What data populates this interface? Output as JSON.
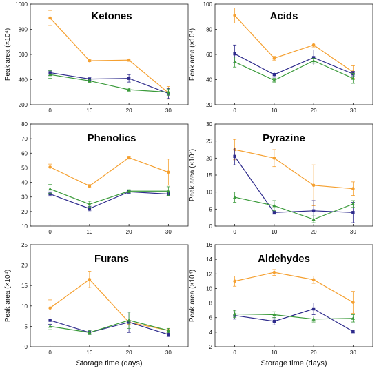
{
  "figure": {
    "xlabel": "Storage time (days)",
    "ylabel": "Peak area (×10⁴)"
  },
  "colors": {
    "orange": "#f5a030",
    "blue": "#2e2b8c",
    "green": "#3a9a3a"
  },
  "chart_data": [
    {
      "type": "line",
      "title": "Ketones",
      "x": [
        0,
        10,
        20,
        30
      ],
      "xlim": [
        -5,
        35
      ],
      "xticks": [
        0,
        10,
        20,
        30
      ],
      "ylim": [
        200,
        1000
      ],
      "yticks": [
        200,
        400,
        600,
        800,
        1000
      ],
      "ylabel": "Peak area (×10⁴)",
      "xlabel": "",
      "series": [
        {
          "color": "orange",
          "marker": "circle",
          "values": [
            890,
            550,
            555,
            295
          ],
          "errors": [
            60,
            8,
            10,
            50
          ]
        },
        {
          "color": "blue",
          "marker": "square",
          "values": [
            455,
            405,
            410,
            290
          ],
          "errors": [
            20,
            10,
            30,
            40
          ]
        },
        {
          "color": "green",
          "marker": "triangle",
          "values": [
            440,
            390,
            320,
            300
          ],
          "errors": [
            30,
            12,
            12,
            25
          ]
        }
      ]
    },
    {
      "type": "line",
      "title": "Acids",
      "x": [
        0,
        10,
        20,
        30
      ],
      "xlim": [
        -5,
        35
      ],
      "xticks": [
        0,
        10,
        20,
        30
      ],
      "ylim": [
        20,
        100
      ],
      "yticks": [
        20,
        40,
        60,
        80,
        100
      ],
      "ylabel": "Peak area (×10⁴)",
      "xlabel": "",
      "series": [
        {
          "color": "orange",
          "marker": "circle",
          "values": [
            91,
            57,
            67.5,
            46
          ],
          "errors": [
            6,
            1.5,
            1.5,
            5
          ]
        },
        {
          "color": "blue",
          "marker": "square",
          "values": [
            60.5,
            44,
            57.5,
            44.5
          ],
          "errors": [
            7,
            2,
            6,
            2
          ]
        },
        {
          "color": "green",
          "marker": "triangle",
          "values": [
            54,
            39.5,
            55,
            41
          ],
          "errors": [
            4,
            1.5,
            2,
            4
          ]
        }
      ]
    },
    {
      "type": "line",
      "title": "Phenolics",
      "x": [
        0,
        10,
        20,
        30
      ],
      "xlim": [
        -5,
        35
      ],
      "xticks": [
        0,
        10,
        20,
        30
      ],
      "ylim": [
        10,
        80
      ],
      "yticks": [
        10,
        20,
        30,
        40,
        50,
        60,
        70,
        80
      ],
      "ylabel": "",
      "xlabel": "",
      "series": [
        {
          "color": "orange",
          "marker": "circle",
          "values": [
            50.5,
            37.5,
            57,
            47
          ],
          "errors": [
            2,
            1,
            1,
            9
          ]
        },
        {
          "color": "blue",
          "marker": "square",
          "values": [
            32,
            22,
            33.5,
            32
          ],
          "errors": [
            1.5,
            1.5,
            1,
            1
          ]
        },
        {
          "color": "green",
          "marker": "triangle",
          "values": [
            35.5,
            25,
            34,
            34
          ],
          "errors": [
            3,
            2,
            1,
            3
          ]
        }
      ]
    },
    {
      "type": "line",
      "title": "Pyrazine",
      "x": [
        0,
        10,
        20,
        30
      ],
      "xlim": [
        -5,
        35
      ],
      "xticks": [
        0,
        10,
        20,
        30
      ],
      "ylim": [
        0,
        30
      ],
      "yticks": [
        0,
        5,
        10,
        15,
        20,
        25,
        30
      ],
      "ylabel": "Peak area (×10⁴)",
      "xlabel": "",
      "series": [
        {
          "color": "orange",
          "marker": "circle",
          "values": [
            22.5,
            20,
            12,
            11
          ],
          "errors": [
            3,
            2.5,
            6,
            2
          ]
        },
        {
          "color": "blue",
          "marker": "square",
          "values": [
            20.5,
            4,
            4.5,
            4
          ],
          "errors": [
            2.5,
            0.5,
            3,
            3
          ]
        },
        {
          "color": "green",
          "marker": "triangle",
          "values": [
            8.5,
            6,
            2,
            6.5
          ],
          "errors": [
            1.5,
            1.5,
            1,
            1
          ]
        }
      ]
    },
    {
      "type": "line",
      "title": "Furans",
      "x": [
        0,
        10,
        20,
        30
      ],
      "xlim": [
        -5,
        35
      ],
      "xticks": [
        0,
        10,
        20,
        30
      ],
      "ylim": [
        0,
        25
      ],
      "yticks": [
        0,
        5,
        10,
        15,
        20,
        25
      ],
      "ylabel": "Peak area (×10⁴)",
      "xlabel": "Storage time (days)",
      "series": [
        {
          "color": "orange",
          "marker": "circle",
          "values": [
            9.5,
            16.5,
            6,
            4
          ],
          "errors": [
            2,
            2,
            0.5,
            0.5
          ]
        },
        {
          "color": "blue",
          "marker": "square",
          "values": [
            6.5,
            3.5,
            6,
            3
          ],
          "errors": [
            1,
            0.5,
            2.5,
            0.5
          ]
        },
        {
          "color": "green",
          "marker": "triangle",
          "values": [
            5,
            3.5,
            6.5,
            4
          ],
          "errors": [
            0.8,
            0.5,
            2,
            0.5
          ]
        }
      ]
    },
    {
      "type": "line",
      "title": "Aldehydes",
      "x": [
        0,
        10,
        20,
        30
      ],
      "xlim": [
        -5,
        35
      ],
      "xticks": [
        0,
        10,
        20,
        30
      ],
      "ylim": [
        2,
        16
      ],
      "yticks": [
        2,
        4,
        6,
        8,
        10,
        12,
        14,
        16
      ],
      "ylabel": "Peak area (×10⁴)",
      "xlabel": "Storage time (days)",
      "series": [
        {
          "color": "orange",
          "marker": "circle",
          "values": [
            11,
            12.2,
            11.2,
            8.1
          ],
          "errors": [
            0.7,
            0.4,
            0.5,
            1.5
          ]
        },
        {
          "color": "blue",
          "marker": "square",
          "values": [
            6.3,
            5.5,
            7.2,
            4.1
          ],
          "errors": [
            0.5,
            0.5,
            0.8,
            0.2
          ]
        },
        {
          "color": "green",
          "marker": "triangle",
          "values": [
            6.5,
            6.4,
            5.8,
            5.9
          ],
          "errors": [
            0.5,
            0.4,
            0.4,
            0.5
          ]
        }
      ]
    }
  ]
}
